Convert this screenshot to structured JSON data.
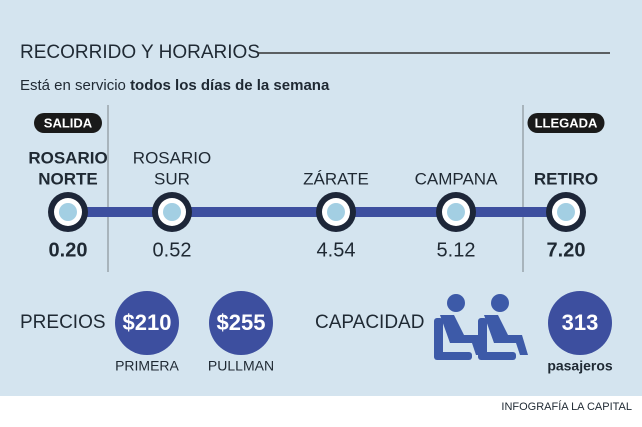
{
  "header": {
    "title": "RECORRIDO Y HORARIOS",
    "subtitle": {
      "text": "Está en servicio",
      "emphasis": "todos los días de la semana"
    }
  },
  "route": {
    "stations": [
      {
        "badge": "SALIDA",
        "name": [
          "ROSARIO",
          "NORTE"
        ],
        "time": "0.20"
      },
      {
        "name": [
          "ROSARIO",
          "SUR"
        ],
        "time": "0.52"
      },
      {
        "name": [
          "ZÁRATE"
        ],
        "time": "4.54"
      },
      {
        "name": [
          "CAMPANA"
        ],
        "time": "5.12"
      },
      {
        "badge": "LLEGADA",
        "name": [
          "RETIRO"
        ],
        "time": "7.20"
      }
    ]
  },
  "prices": {
    "label": "PRECIOS",
    "items": [
      {
        "amount": "$210",
        "class": "PRIMERA"
      },
      {
        "amount": "$255",
        "class": "PULLMAN"
      }
    ]
  },
  "capacity": {
    "label": "CAPACIDAD",
    "value": "313",
    "unit": "pasajeros"
  },
  "credit": "INFOGRAFÍA LA CAPITAL"
}
